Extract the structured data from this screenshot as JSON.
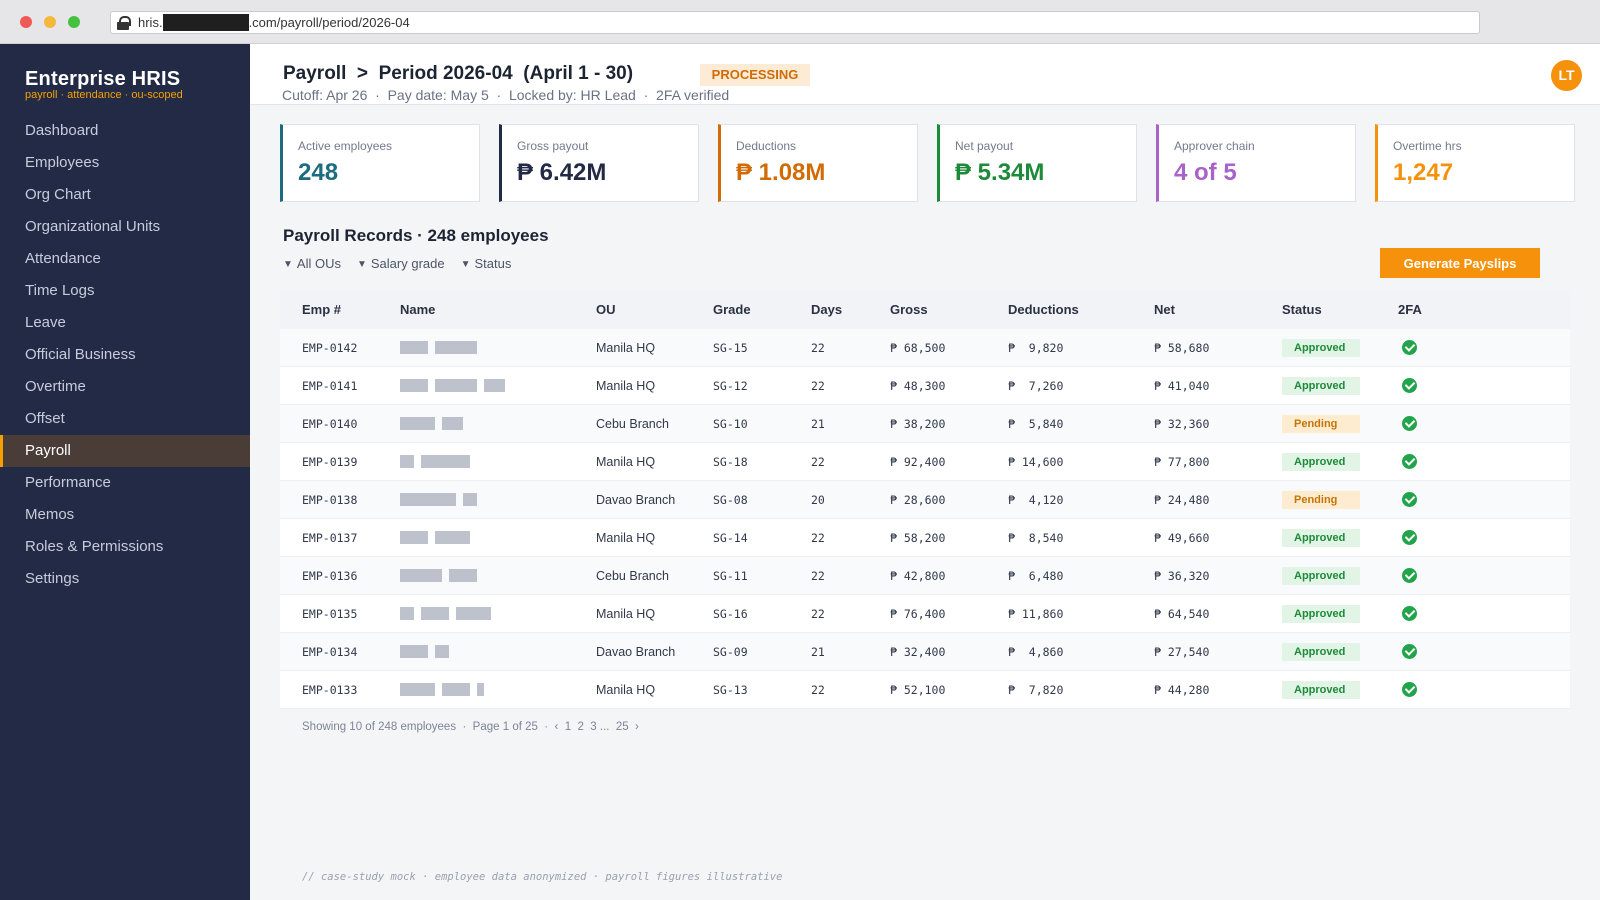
{
  "browser": {
    "url_prefix": "hris.",
    "url_suffix": ".com/payroll/period/2026-04"
  },
  "brand": {
    "title": "Enterprise HRIS",
    "subtitle": "payroll · attendance · ou-scoped"
  },
  "sidebar": {
    "items": [
      {
        "label": "Dashboard",
        "active": false
      },
      {
        "label": "Employees",
        "active": false
      },
      {
        "label": "Org Chart",
        "active": false
      },
      {
        "label": "Organizational Units",
        "active": false
      },
      {
        "label": "Attendance",
        "active": false
      },
      {
        "label": "Time Logs",
        "active": false
      },
      {
        "label": "Leave",
        "active": false
      },
      {
        "label": "Official Business",
        "active": false
      },
      {
        "label": "Overtime",
        "active": false
      },
      {
        "label": "Offset",
        "active": false
      },
      {
        "label": "Payroll",
        "active": true
      },
      {
        "label": "Performance",
        "active": false
      },
      {
        "label": "Memos",
        "active": false
      },
      {
        "label": "Roles & Permissions",
        "active": false
      },
      {
        "label": "Settings",
        "active": false
      }
    ]
  },
  "header": {
    "breadcrumb": "Payroll  >  Period 2026-04  (April 1 - 30)",
    "status": "PROCESSING",
    "meta": "Cutoff: Apr 26  ·  Pay date: May 5  ·  Locked by: HR Lead  ·  2FA verified",
    "avatar_initials": "LT"
  },
  "kpis": [
    {
      "label": "Active employees",
      "value": "248",
      "color": "#1d6b7e"
    },
    {
      "label": "Gross payout",
      "value": "₱ 6.42M",
      "color": "#232a45"
    },
    {
      "label": "Deductions",
      "value": "₱ 1.08M",
      "color": "#d06b06"
    },
    {
      "label": "Net payout",
      "value": "₱ 5.34M",
      "color": "#1d8a3a"
    },
    {
      "label": "Approver chain",
      "value": "4 of 5",
      "color": "#a862c9"
    },
    {
      "label": "Overtime hrs",
      "value": "1,247",
      "color": "#f5910b"
    }
  ],
  "records": {
    "title": "Payroll Records · 248 employees",
    "filters": [
      "All OUs",
      "Salary grade",
      "Status"
    ],
    "generate_label": "Generate Payslips",
    "columns": [
      "Emp #",
      "Name",
      "OU",
      "Grade",
      "Days",
      "Gross",
      "Deductions",
      "Net",
      "Status",
      "2FA"
    ],
    "rows": [
      {
        "emp": "EMP-0142",
        "name_bars": [
          4,
          6
        ],
        "ou": "Manila HQ",
        "grade": "SG-15",
        "days": "22",
        "gross": "₱ 68,500",
        "deductions": "₱  9,820",
        "net": "₱ 58,680",
        "status": "Approved"
      },
      {
        "emp": "EMP-0141",
        "name_bars": [
          4,
          6,
          3
        ],
        "ou": "Manila HQ",
        "grade": "SG-12",
        "days": "22",
        "gross": "₱ 48,300",
        "deductions": "₱  7,260",
        "net": "₱ 41,040",
        "status": "Approved"
      },
      {
        "emp": "EMP-0140",
        "name_bars": [
          5,
          3
        ],
        "ou": "Cebu Branch",
        "grade": "SG-10",
        "days": "21",
        "gross": "₱ 38,200",
        "deductions": "₱  5,840",
        "net": "₱ 32,360",
        "status": "Pending"
      },
      {
        "emp": "EMP-0139",
        "name_bars": [
          2,
          7
        ],
        "ou": "Manila HQ",
        "grade": "SG-18",
        "days": "22",
        "gross": "₱ 92,400",
        "deductions": "₱ 14,600",
        "net": "₱ 77,800",
        "status": "Approved"
      },
      {
        "emp": "EMP-0138",
        "name_bars": [
          8,
          2
        ],
        "ou": "Davao Branch",
        "grade": "SG-08",
        "days": "20",
        "gross": "₱ 28,600",
        "deductions": "₱  4,120",
        "net": "₱ 24,480",
        "status": "Pending"
      },
      {
        "emp": "EMP-0137",
        "name_bars": [
          4,
          5
        ],
        "ou": "Manila HQ",
        "grade": "SG-14",
        "days": "22",
        "gross": "₱ 58,200",
        "deductions": "₱  8,540",
        "net": "₱ 49,660",
        "status": "Approved"
      },
      {
        "emp": "EMP-0136",
        "name_bars": [
          6,
          4
        ],
        "ou": "Cebu Branch",
        "grade": "SG-11",
        "days": "22",
        "gross": "₱ 42,800",
        "deductions": "₱  6,480",
        "net": "₱ 36,320",
        "status": "Approved"
      },
      {
        "emp": "EMP-0135",
        "name_bars": [
          2,
          4,
          5
        ],
        "ou": "Manila HQ",
        "grade": "SG-16",
        "days": "22",
        "gross": "₱ 76,400",
        "deductions": "₱ 11,860",
        "net": "₱ 64,540",
        "status": "Approved"
      },
      {
        "emp": "EMP-0134",
        "name_bars": [
          4,
          2
        ],
        "ou": "Davao Branch",
        "grade": "SG-09",
        "days": "21",
        "gross": "₱ 32,400",
        "deductions": "₱  4,860",
        "net": "₱ 27,540",
        "status": "Approved"
      },
      {
        "emp": "EMP-0133",
        "name_bars": [
          5,
          4,
          1
        ],
        "ou": "Manila HQ",
        "grade": "SG-13",
        "days": "22",
        "gross": "₱ 52,100",
        "deductions": "₱  7,820",
        "net": "₱ 44,280",
        "status": "Approved"
      }
    ]
  },
  "pager": "Showing 10 of 248 employees  ·  Page 1 of 25  ·  ‹  1  2  3 ...  25  ›",
  "footnote": "// case-study mock · employee data anonymized · payroll figures illustrative"
}
